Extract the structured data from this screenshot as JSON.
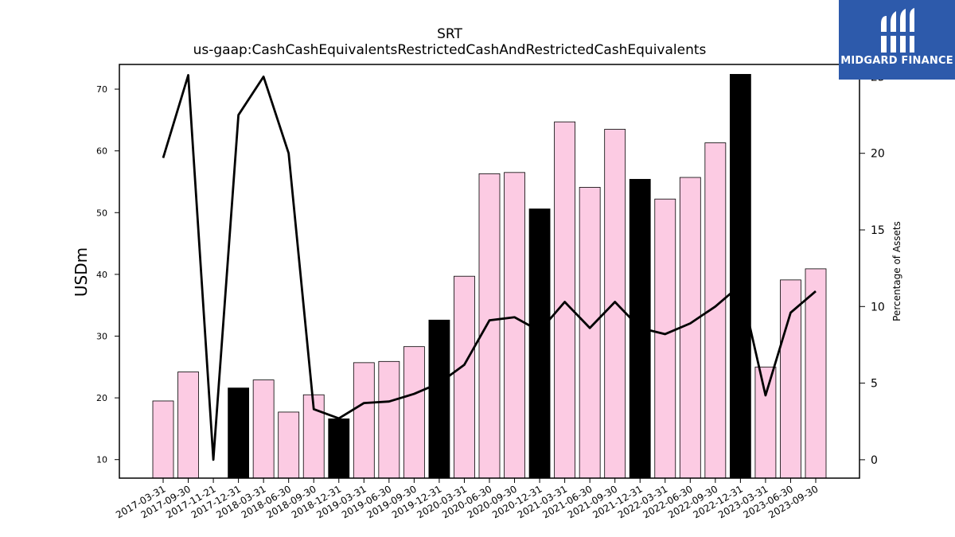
{
  "brand": {
    "name": "MIDGARD FINANCE"
  },
  "colors": {
    "bar_default": "#fccbe3",
    "bar_highlight": "#000000",
    "line": "#000000",
    "brand_bg": "#2d5aab"
  },
  "chart_data": {
    "type": "bar",
    "title": "SRT",
    "subtitle": "us-gaap:CashCashEquivalentsRestrictedCashAndRestrictedCashEquivalents",
    "ylabel": "USDm",
    "y2label": "Percentage of Assets",
    "ylim": [
      7,
      74
    ],
    "y2lim": [
      -1.2,
      25.8
    ],
    "yticks": [
      10,
      20,
      30,
      40,
      50,
      60,
      70
    ],
    "y2ticks": [
      0,
      5,
      10,
      15,
      20,
      25
    ],
    "grid": false,
    "categories": [
      "2017-03-31",
      "2017-09-30",
      "2017-11-21",
      "2017-12-31",
      "2018-03-31",
      "2018-06-30",
      "2018-09-30",
      "2018-12-31",
      "2019-03-31",
      "2019-06-30",
      "2019-09-30",
      "2019-12-31",
      "2020-03-31",
      "2020-06-30",
      "2020-09-30",
      "2020-12-31",
      "2021-03-31",
      "2021-06-30",
      "2021-09-30",
      "2021-12-31",
      "2022-03-31",
      "2022-06-30",
      "2022-09-30",
      "2022-12-31",
      "2023-03-31",
      "2023-06-30",
      "2023-09-30"
    ],
    "series": [
      {
        "type": "bar",
        "axis": "left",
        "values": [
          19.5,
          24.2,
          null,
          21.6,
          22.9,
          17.7,
          20.5,
          16.6,
          25.7,
          25.9,
          28.3,
          32.6,
          39.7,
          56.3,
          56.5,
          50.6,
          64.7,
          54.1,
          63.5,
          55.4,
          52.2,
          55.7,
          61.3,
          72.4,
          25.0,
          39.1,
          40.9
        ],
        "highlighted": [
          false,
          false,
          false,
          true,
          false,
          false,
          false,
          true,
          false,
          false,
          false,
          true,
          false,
          false,
          false,
          true,
          false,
          false,
          false,
          true,
          false,
          false,
          false,
          true,
          false,
          false,
          false
        ]
      },
      {
        "type": "line",
        "axis": "right",
        "values": [
          19.7,
          25.1,
          0.0,
          22.5,
          25.0,
          20.0,
          3.3,
          2.7,
          3.7,
          3.8,
          4.3,
          5.0,
          6.2,
          9.1,
          9.3,
          8.4,
          10.3,
          8.6,
          10.3,
          8.6,
          8.2,
          8.9,
          10.0,
          11.4,
          4.2,
          9.6,
          11.0
        ]
      }
    ]
  }
}
